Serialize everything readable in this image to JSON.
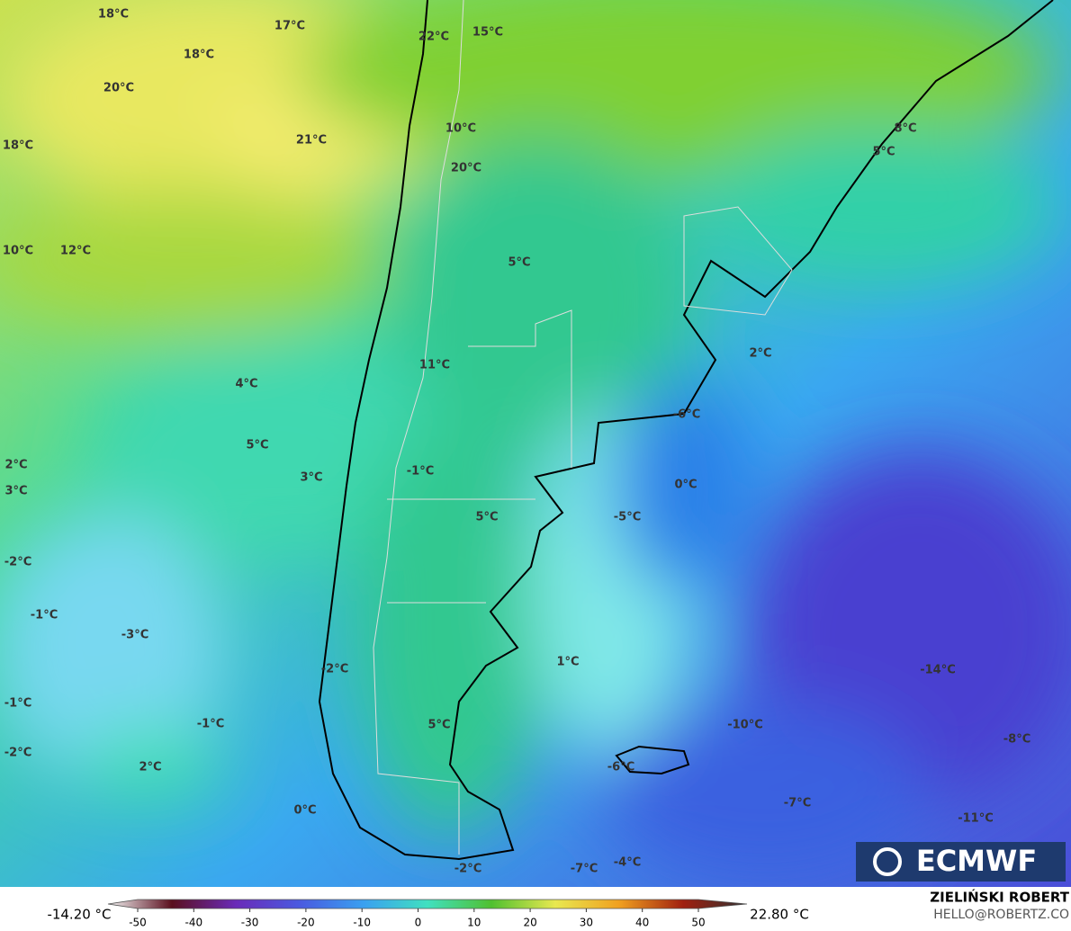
{
  "map": {
    "labels": [
      "18°C",
      "17°C",
      "22°C",
      "15°C",
      "18°C",
      "20°C",
      "21°C",
      "18°C",
      "10°C",
      "8°C",
      "5°C",
      "20°C",
      "10°C",
      "12°C",
      "5°C",
      "2°C",
      "11°C",
      "4°C",
      "-6°C",
      "5°C",
      "2°C",
      "-1°C",
      "3°C",
      "3°C",
      "0°C",
      "5°C",
      "-5°C",
      "-2°C",
      "-1°C",
      "-3°C",
      "1°C",
      "-14°C",
      "-2°C",
      "-1°C",
      "-1°C",
      "5°C",
      "-10°C",
      "-8°C",
      "-2°C",
      "2°C",
      "-6°C",
      "-7°C",
      "0°C",
      "-11°C",
      "-4°C",
      "-7°C",
      "-2°C"
    ]
  },
  "colorbar": {
    "min_label": "-14.20 °C",
    "max_label": "22.80 °C",
    "ticks": [
      -50,
      -40,
      -30,
      -20,
      -10,
      0,
      10,
      20,
      30,
      40,
      50
    ],
    "colors": [
      "#f4f4f4",
      "#5a0f1e",
      "#6a2bb8",
      "#4a5ae0",
      "#3aa0f0",
      "#40e0c0",
      "#50c030",
      "#e8e850",
      "#f0a020",
      "#a02010",
      "#303030"
    ]
  },
  "logo": "ECMWF",
  "credit": {
    "name": "ZIELIŃSKI ROBERT",
    "email": "HELLO@ROBERTZ.CO"
  }
}
